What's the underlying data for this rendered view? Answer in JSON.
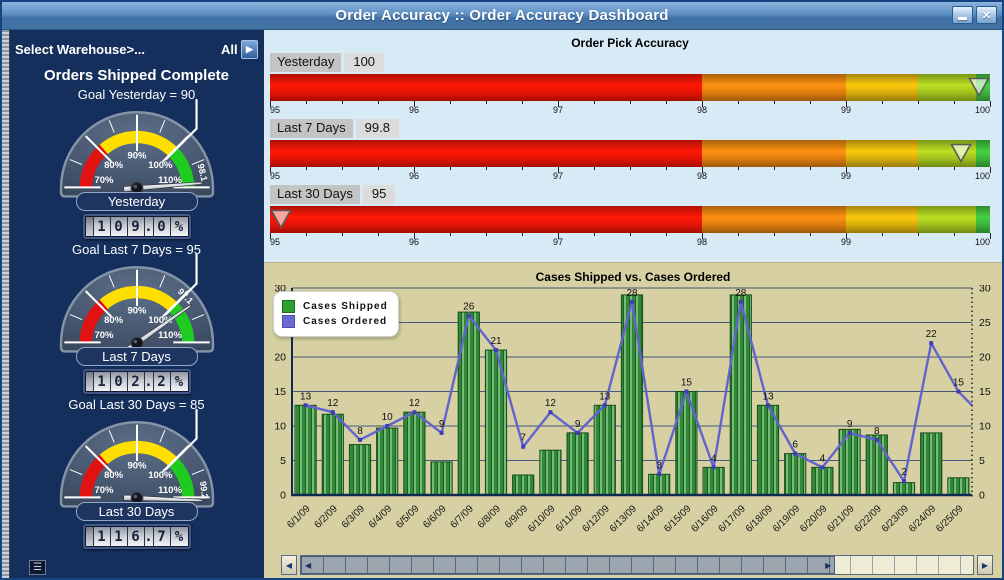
{
  "window": {
    "title": "Order Accuracy :: Order Accuracy Dashboard"
  },
  "icons": {
    "minimize": "minimize-bar",
    "close": "✕",
    "filter_arrow": "▶",
    "menu": "☰",
    "scroll_left": "◀",
    "scroll_right": "▶"
  },
  "sidebar": {
    "filter_label": "Select Warehouse>...",
    "filter_value": "All",
    "heading": "Orders Shipped Complete",
    "gauge_scale": {
      "min": 70,
      "max": 110,
      "tick_labels": [
        {
          "value": 70,
          "text": "70%"
        },
        {
          "value": 80,
          "text": "80%"
        },
        {
          "value": 90,
          "text": "90%"
        },
        {
          "value": 100,
          "text": "100%"
        },
        {
          "value": 110,
          "text": "110%"
        }
      ],
      "bands": [
        {
          "from": 70,
          "to": 81,
          "color": "#e01212"
        },
        {
          "from": 81,
          "to": 100,
          "color": "#ffdf00"
        },
        {
          "from": 100,
          "to": 110,
          "color": "#1ecb1e"
        }
      ],
      "goal_marker_at": 100
    },
    "gauges": [
      {
        "goal_text": "Goal Yesterday = 90",
        "name": "Yesterday",
        "percent": 109.0,
        "display": "109.0%",
        "rim_value": "98.1"
      },
      {
        "goal_text": "Goal Last 7 Days = 95",
        "name": "Last 7 Days",
        "percent": 102.2,
        "display": "102.2%",
        "rim_value": "97.1"
      },
      {
        "goal_text": "Goal Last 30 Days = 85",
        "name": "Last 30 Days",
        "percent": 116.7,
        "display": "116.7%",
        "rim_value": "99.2"
      }
    ]
  },
  "bullet_section": {
    "title": "Order Pick Accuracy",
    "axis": {
      "min": 95,
      "max": 100,
      "majors": [
        95,
        96,
        97,
        98,
        99,
        100
      ],
      "minor_step": 0.25
    },
    "ranges": [
      {
        "from": 95,
        "to": 98,
        "color": "#ee1505"
      },
      {
        "from": 98,
        "to": 99,
        "color": "#e5820e"
      },
      {
        "from": 99,
        "to": 99.5,
        "color": "#e0b40c"
      },
      {
        "from": 99.5,
        "to": 99.9,
        "color": "#a6c91e"
      },
      {
        "from": 99.9,
        "to": 100,
        "color": "#3fbb3c"
      }
    ],
    "items": [
      {
        "label": "Yesterday",
        "value": "100",
        "marker": 100
      },
      {
        "label": "Last 7 Days",
        "value": "99.8",
        "marker": 99.8
      },
      {
        "label": "Last 30 Days",
        "value": "95",
        "marker": 95
      }
    ]
  },
  "chart_data": {
    "type": "bar+line",
    "title": "Cases Shipped vs. Cases Ordered",
    "categories": [
      "6/1/09",
      "6/2/09",
      "6/3/09",
      "6/4/09",
      "6/5/09",
      "6/6/09",
      "6/7/09",
      "6/8/09",
      "6/9/09",
      "6/10/09",
      "6/11/09",
      "6/12/09",
      "6/13/09",
      "6/14/09",
      "6/15/09",
      "6/16/09",
      "6/17/09",
      "6/18/09",
      "6/19/09",
      "6/20/09",
      "6/21/09",
      "6/22/09",
      "6/23/09",
      "6/24/09",
      "6/25/09"
    ],
    "series": [
      {
        "name": "Cases Shipped",
        "type": "bar",
        "color": "#2f8b33",
        "values": [
          13,
          11.7,
          7.3,
          9.7,
          12,
          4.8,
          26.5,
          21,
          2.9,
          6.5,
          9,
          13,
          29,
          3,
          15,
          4,
          29,
          13,
          6,
          4,
          9.5,
          8.7,
          1.8,
          9,
          2.5
        ]
      },
      {
        "name": "Cases Ordered",
        "type": "line",
        "color": "#6363ce",
        "values": [
          13,
          12,
          8,
          10,
          12,
          9,
          26,
          21,
          7,
          12,
          9,
          13,
          28,
          3,
          15,
          4,
          28,
          13,
          6,
          4,
          9,
          8,
          2,
          22,
          15
        ]
      }
    ],
    "point_labels": [
      "13",
      "12",
      "8",
      "10",
      "12",
      "9",
      "26",
      "21",
      "7",
      "12",
      "9",
      "13",
      "28",
      "3",
      "15",
      "4",
      "28",
      "13",
      "6",
      "4",
      "9",
      "8",
      "2",
      "22",
      "15"
    ],
    "line_exit_value": 13,
    "ylim": [
      0,
      30
    ],
    "ytick_step": 5,
    "grid": true,
    "legend_position": "top-left"
  }
}
